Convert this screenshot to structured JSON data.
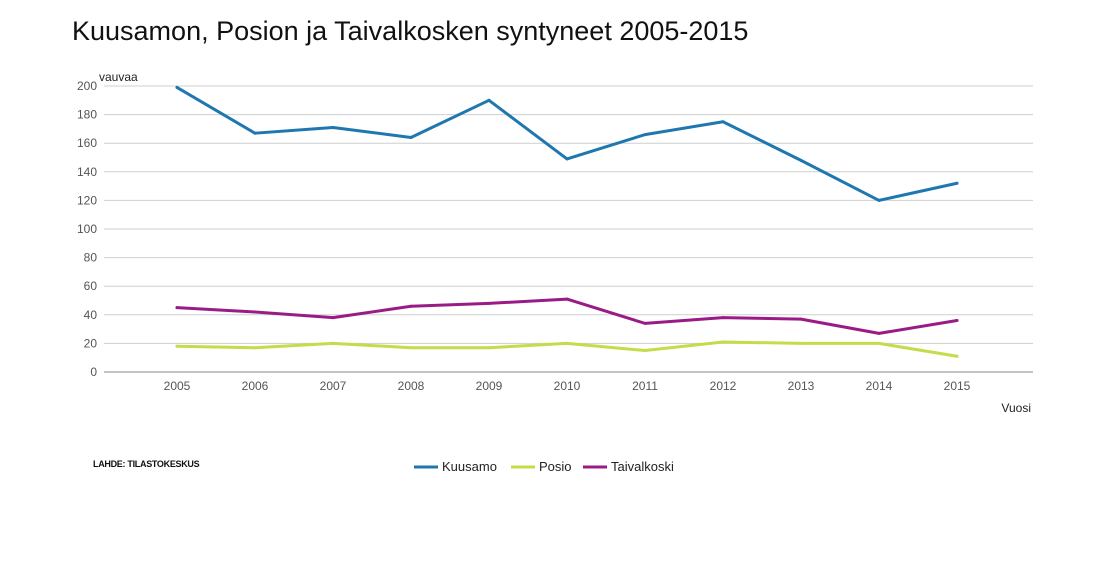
{
  "title": "Kuusamon, Posion ja Taivalkosken syntyneet 2005-2015",
  "source": "LAHDE: TILASTOKESKUS",
  "chart_data": {
    "type": "line",
    "title": "Kuusamon, Posion ja Taivalkosken syntyneet 2005-2015",
    "ylabel": "vauvaa",
    "xlabel": "Vuosi",
    "x": [
      "2005",
      "2006",
      "2007",
      "2008",
      "2009",
      "2010",
      "2011",
      "2012",
      "2013",
      "2014",
      "2015"
    ],
    "ylim": [
      0,
      200
    ],
    "yticks": [
      0,
      20,
      40,
      60,
      80,
      100,
      120,
      140,
      160,
      180,
      200
    ],
    "grid": true,
    "legend_position": "bottom",
    "series": [
      {
        "name": "Kuusamo",
        "color": "#1f77b0",
        "values": [
          199,
          167,
          171,
          164,
          190,
          149,
          166,
          175,
          148,
          120,
          132
        ]
      },
      {
        "name": "Posio",
        "color": "#c5dc4a",
        "values": [
          18,
          17,
          20,
          17,
          17,
          20,
          15,
          21,
          20,
          20,
          11
        ]
      },
      {
        "name": "Taivalkoski",
        "color": "#9b1b86",
        "values": [
          45,
          42,
          38,
          46,
          48,
          51,
          34,
          38,
          37,
          27,
          36
        ]
      }
    ]
  }
}
